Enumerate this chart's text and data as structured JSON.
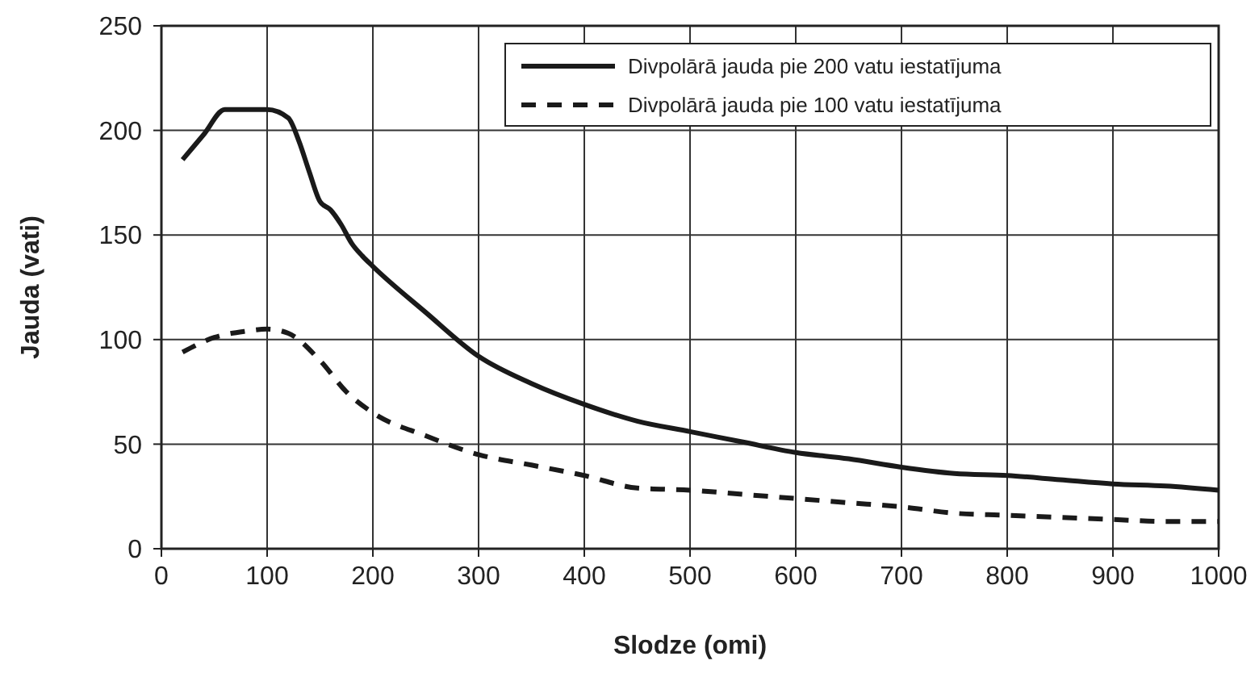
{
  "chart_data": {
    "type": "line",
    "xlabel": "Slodze (omi)",
    "ylabel": "Jauda (vati)",
    "xlim": [
      0,
      1000
    ],
    "xticks": [
      0,
      100,
      200,
      300,
      400,
      500,
      600,
      700,
      800,
      900,
      1000
    ],
    "ylim": [
      0,
      250
    ],
    "yticks": [
      0,
      50,
      100,
      150,
      200,
      250
    ],
    "grid": true,
    "legend": "top right",
    "series": [
      {
        "name": "Divpolārā jauda pie 200 vatu iestatījuma",
        "color": "#1a1a1a",
        "line_style": "solid",
        "x": [
          20,
          40,
          60,
          80,
          100,
          120,
          130,
          140,
          150,
          160,
          170,
          180,
          190,
          200,
          250,
          300,
          350,
          400,
          450,
          500,
          550,
          600,
          650,
          700,
          750,
          800,
          850,
          900,
          950,
          1000
        ],
        "values": [
          186,
          198,
          210,
          210,
          210,
          206,
          195,
          180,
          166,
          162,
          155,
          146,
          140,
          135,
          113,
          92,
          79,
          69,
          61,
          56,
          51,
          46,
          43,
          39,
          36,
          35,
          33,
          31,
          30,
          28
        ]
      },
      {
        "name": "Divpolārā jauda pie 100 vatu iestatījuma",
        "color": "#1a1a1a",
        "line_style": "dashed",
        "x": [
          20,
          50,
          80,
          100,
          120,
          150,
          175,
          200,
          250,
          300,
          350,
          400,
          450,
          500,
          550,
          600,
          650,
          700,
          750,
          800,
          850,
          900,
          950,
          1000
        ],
        "values": [
          94,
          101,
          104,
          105,
          103,
          90,
          75,
          65,
          54,
          45,
          40,
          35,
          29,
          28,
          26,
          24,
          22,
          20,
          17,
          16,
          15,
          14,
          13,
          13
        ]
      }
    ]
  }
}
